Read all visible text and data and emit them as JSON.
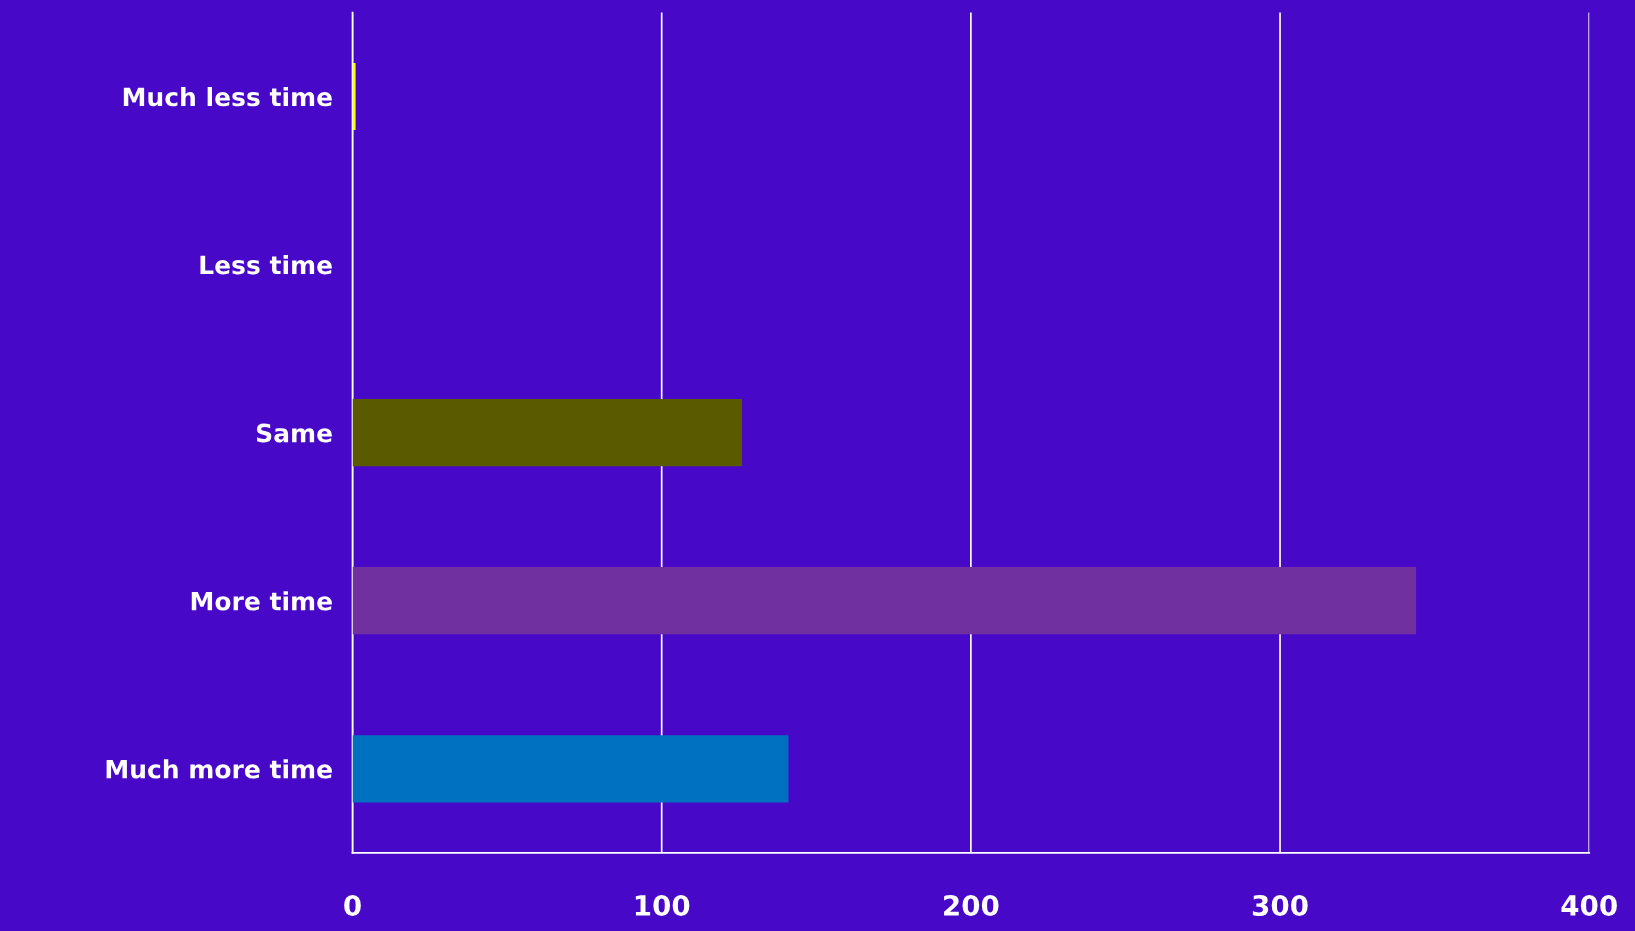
{
  "chart_data": {
    "type": "bar",
    "orientation": "horizontal",
    "categories": [
      "Much less time",
      "Less time",
      "Same",
      "More time",
      "Much more time"
    ],
    "values": [
      1,
      0,
      126,
      344,
      141
    ],
    "colors": [
      "#ffff00",
      "#5a5a00",
      "#5a5a00",
      "#7030a0",
      "#0070c0"
    ],
    "xlim": [
      0,
      400
    ],
    "xticks": [
      0,
      100,
      200,
      300,
      400
    ],
    "grid": "x"
  }
}
